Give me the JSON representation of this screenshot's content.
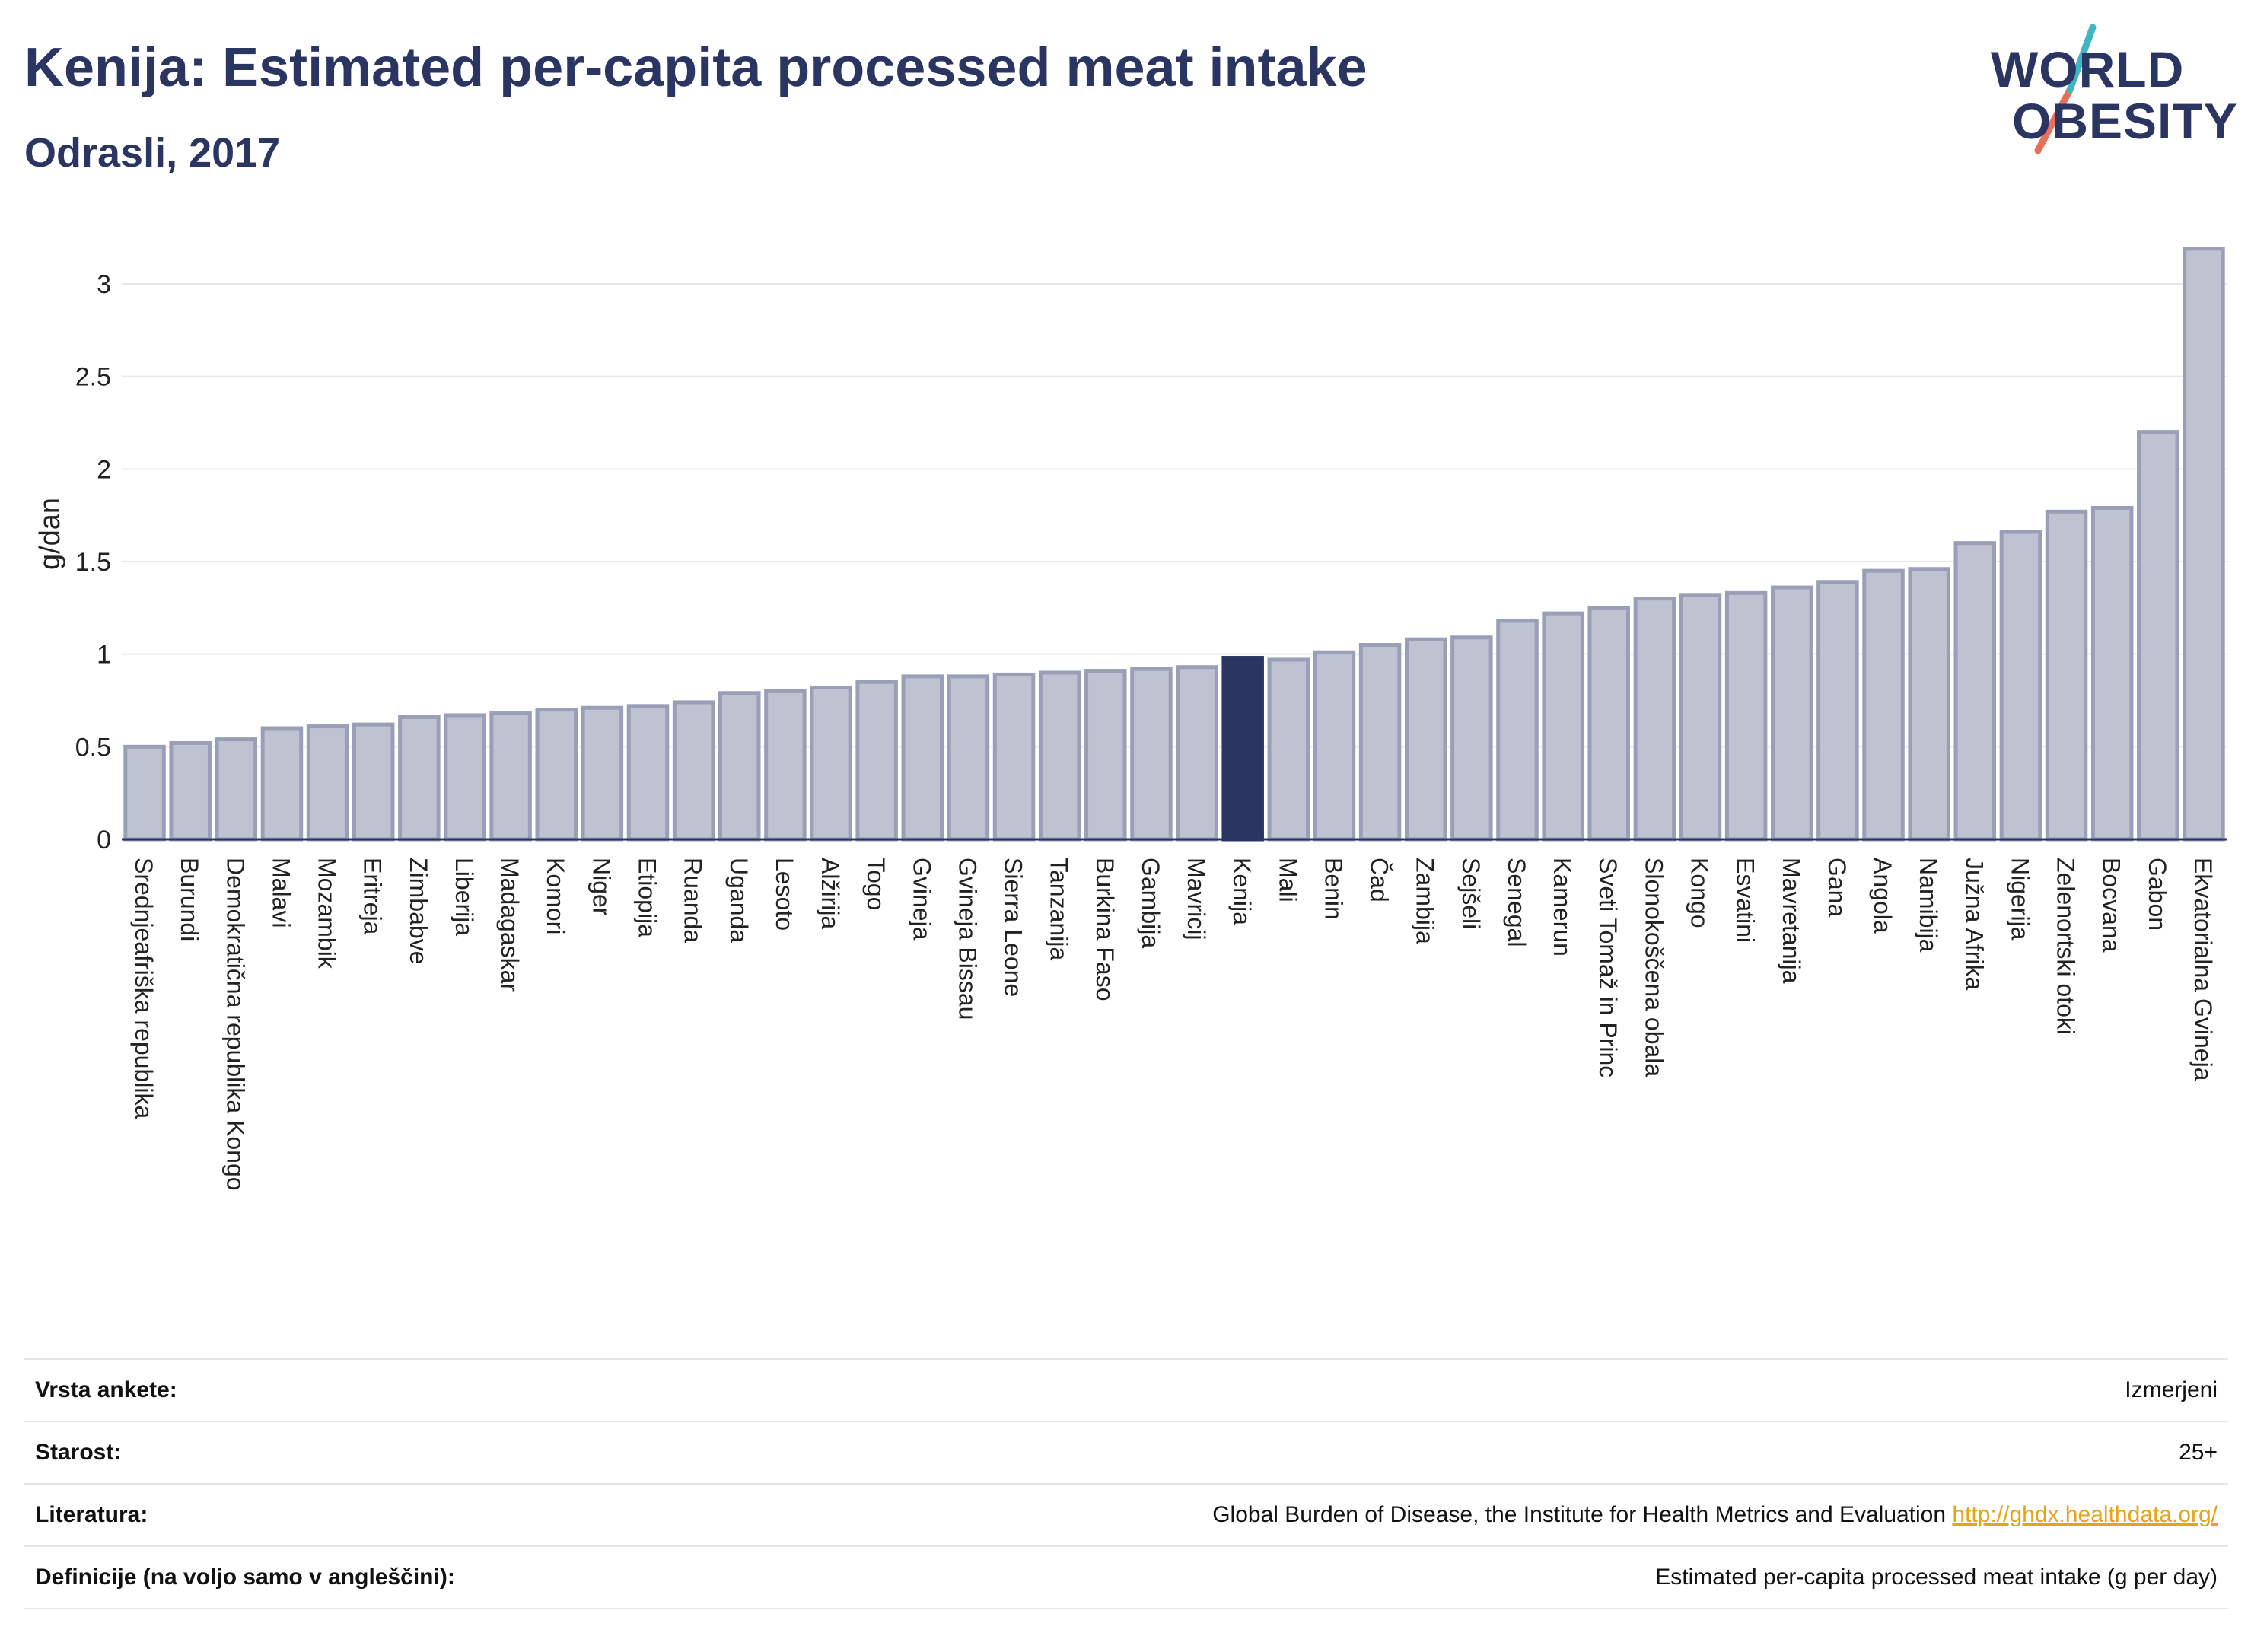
{
  "header": {
    "title": "Kenija: Estimated per-capita processed meat intake",
    "subtitle": "Odrasli, 2017"
  },
  "logo": {
    "line1": "WORLD",
    "line2": "OBESITY",
    "colors": {
      "text": "#2b3561",
      "teal": "#3fb6c1",
      "coral": "#e8705a"
    }
  },
  "colors": {
    "bar_fill": "#bfc2d1",
    "bar_stroke": "#9a9fb8",
    "highlight": "#2b3561",
    "grid": "#e8e8e8"
  },
  "chart_data": {
    "type": "bar",
    "ylabel": "g/dan",
    "xlabel": "",
    "ylim": [
      0,
      3.3
    ],
    "yticks": [
      0,
      0.5,
      1,
      1.5,
      2,
      2.5,
      3
    ],
    "ytick_labels": [
      "0",
      "0.5",
      "1",
      "1.5",
      "2",
      "2.5",
      "3"
    ],
    "grid": true,
    "highlight": "Kenija",
    "categories": [
      "Srednjeafriška republika",
      "Burundi",
      "Demokratična republika Kongo",
      "Malavi",
      "Mozambik",
      "Eritreja",
      "Zimbabve",
      "Liberija",
      "Madagaskar",
      "Komori",
      "Niger",
      "Etiopija",
      "Ruanda",
      "Uganda",
      "Lesoto",
      "Alžirija",
      "Togo",
      "Gvineja",
      "Gvineja Bissau",
      "Sierra Leone",
      "Tanzanija",
      "Burkina Faso",
      "Gambija",
      "Mavricij",
      "Kenija",
      "Mali",
      "Benin",
      "Čad",
      "Zambija",
      "Sejšeli",
      "Senegal",
      "Kamerun",
      "Sveti Tomaž in Princ",
      "Slonokoščena obala",
      "Kongo",
      "Esvatini",
      "Mavretanija",
      "Gana",
      "Angola",
      "Namibija",
      "Južna Afrika",
      "Nigerija",
      "Zelenortski otoki",
      "Bocvana",
      "Gabon",
      "Ekvatorialna Gvineja"
    ],
    "values": [
      0.5,
      0.52,
      0.54,
      0.6,
      0.61,
      0.62,
      0.66,
      0.67,
      0.68,
      0.7,
      0.71,
      0.72,
      0.74,
      0.79,
      0.8,
      0.82,
      0.85,
      0.88,
      0.88,
      0.89,
      0.9,
      0.91,
      0.92,
      0.93,
      0.98,
      0.97,
      1.01,
      1.05,
      1.08,
      1.09,
      1.18,
      1.22,
      1.25,
      1.3,
      1.32,
      1.33,
      1.36,
      1.39,
      1.45,
      1.46,
      1.6,
      1.66,
      1.77,
      1.79,
      2.2,
      3.19
    ]
  },
  "meta": {
    "rows": [
      {
        "key": "Vrsta ankete:",
        "value": "Izmerjeni"
      },
      {
        "key": "Starost:",
        "value": "25+"
      },
      {
        "key": "Literatura:",
        "value": "Global Burden of Disease, the Institute for Health Metrics and Evaluation",
        "link": "http://ghdx.healthdata.org/"
      },
      {
        "key": "Definicije (na voljo samo v angleščini):",
        "value": "Estimated per-capita processed meat intake (g per day)"
      }
    ]
  }
}
